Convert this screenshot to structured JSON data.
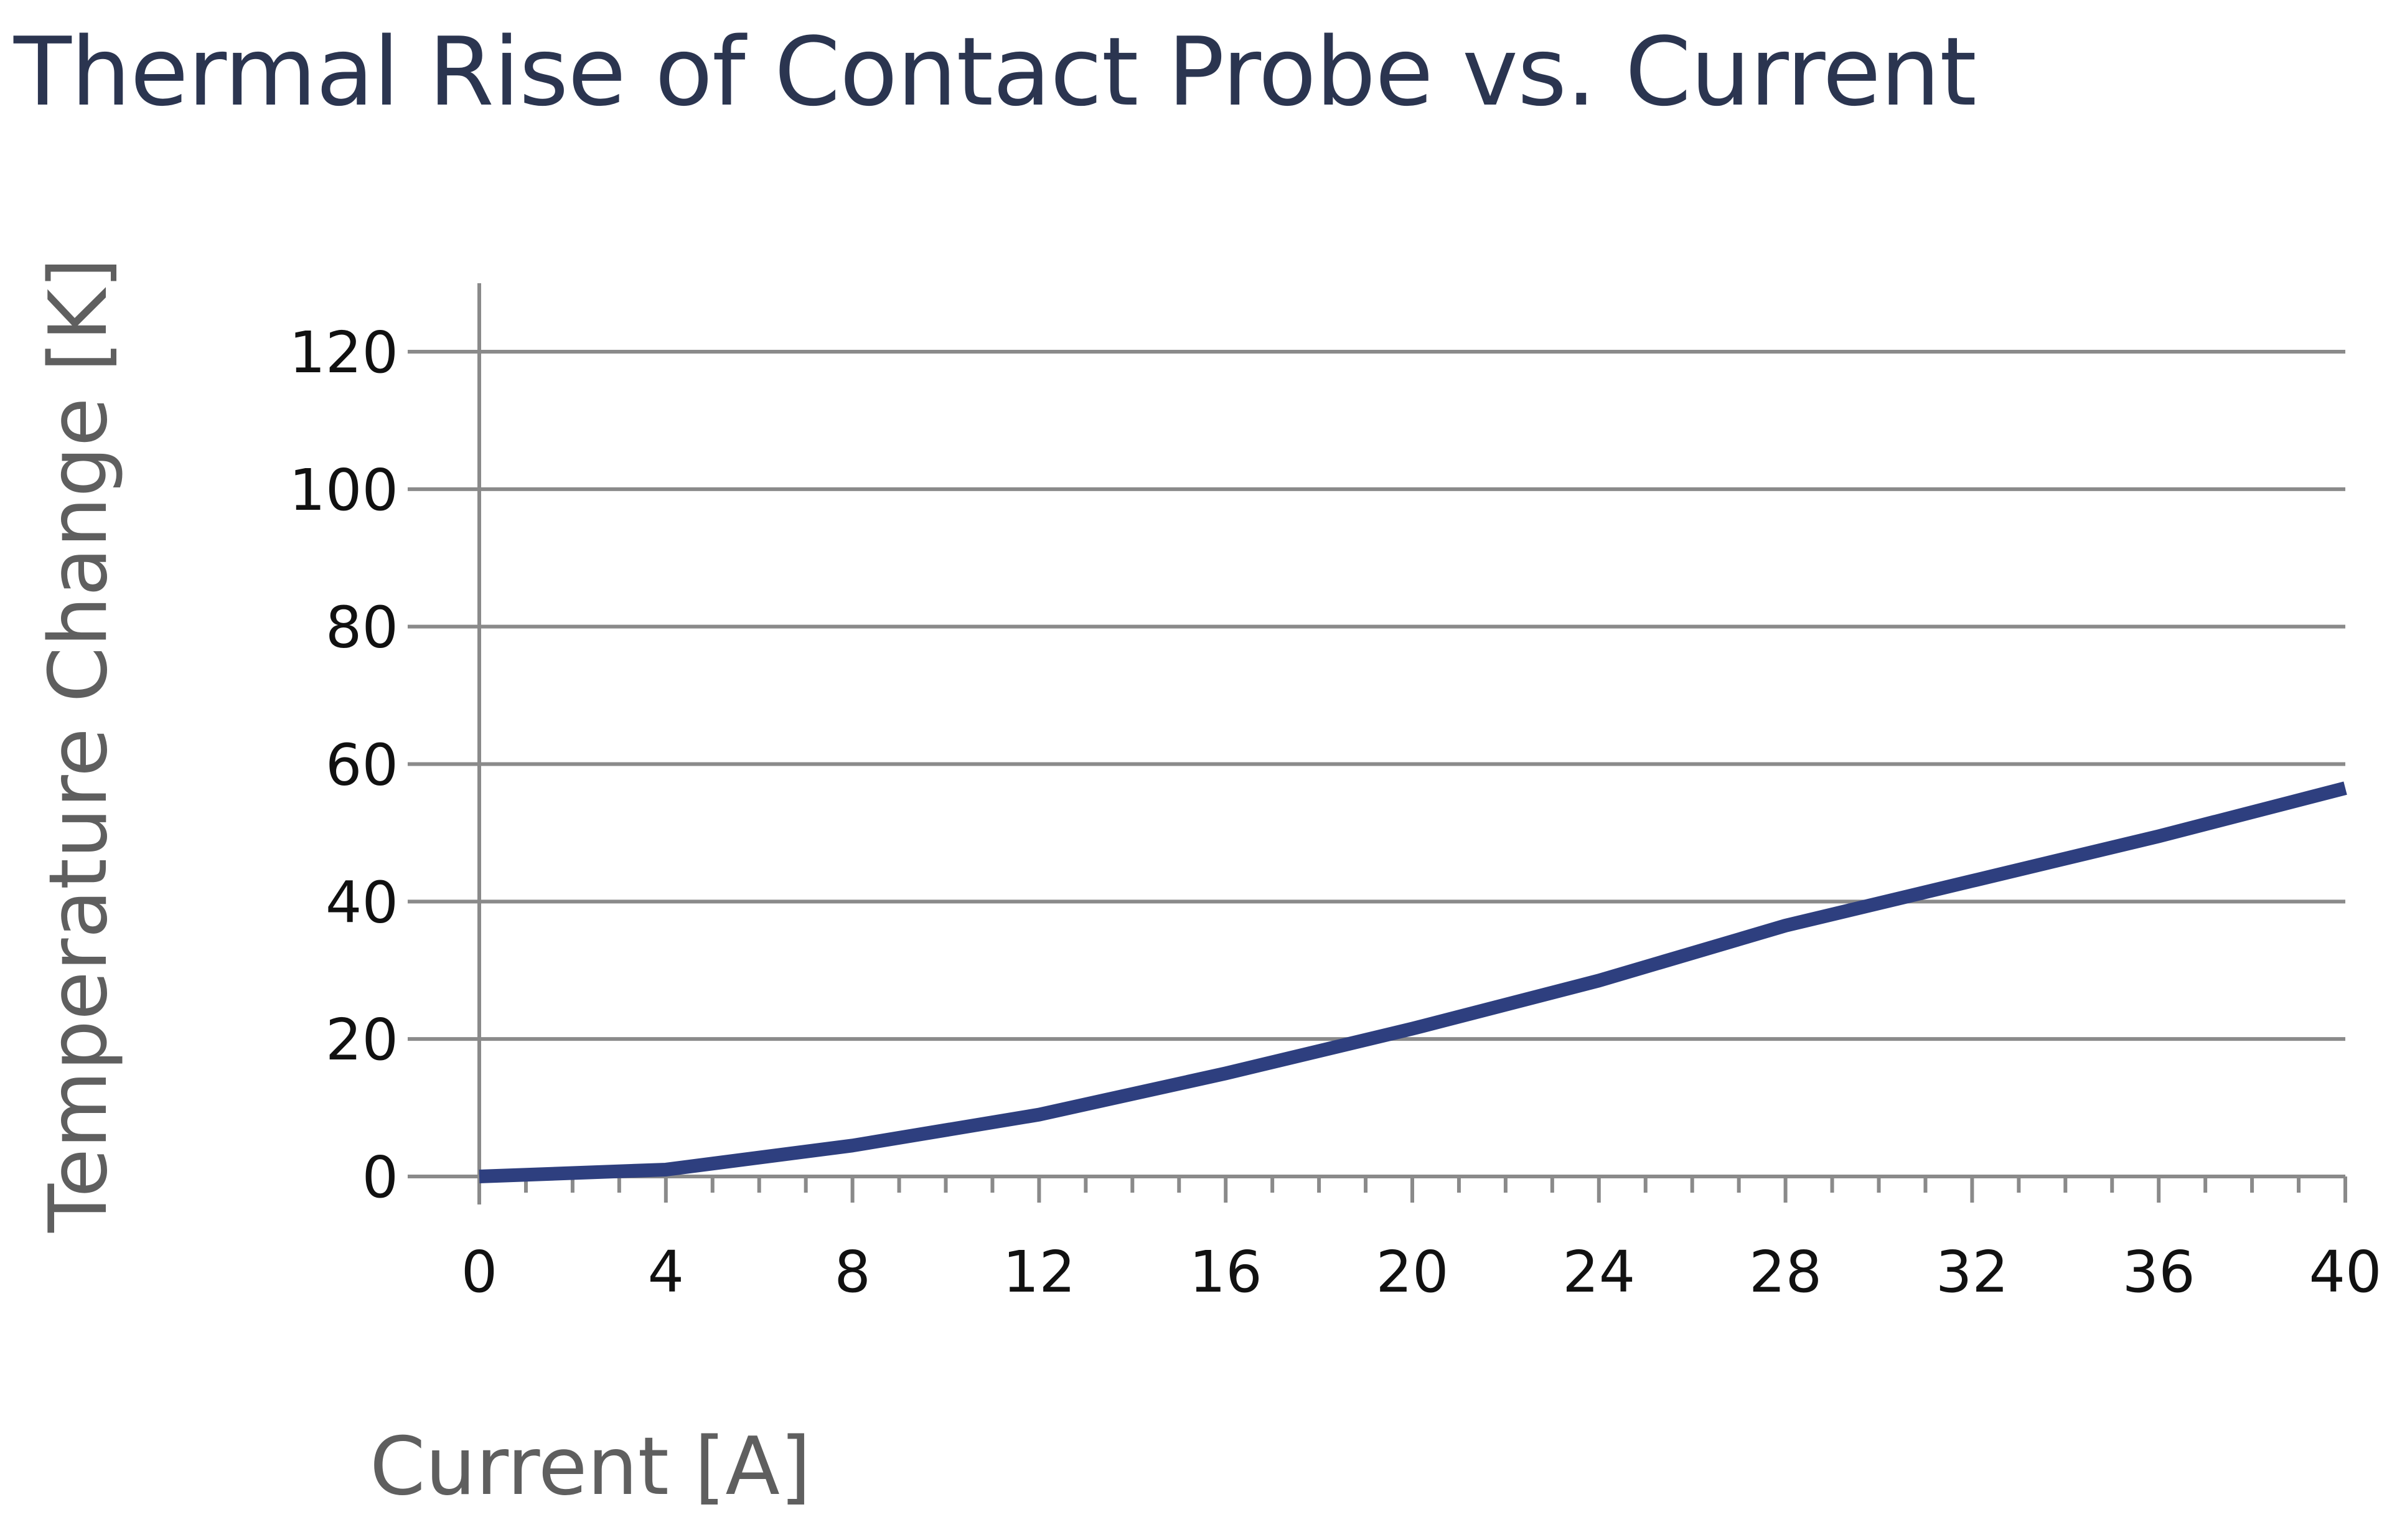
{
  "chart_data": {
    "type": "line",
    "title": "Thermal Rise of Contact Probe vs. Current",
    "xlabel": "Current [A]",
    "ylabel": "Temperature Change [K]",
    "xlim": [
      0,
      40
    ],
    "ylim": [
      0,
      120
    ],
    "x_ticks": [
      "0",
      "4",
      "8",
      "12",
      "16",
      "20",
      "24",
      "28",
      "32",
      "36",
      "40"
    ],
    "y_ticks": [
      "0",
      "20",
      "40",
      "60",
      "80",
      "100",
      "120"
    ],
    "grid": true,
    "legend": "none",
    "series": [
      {
        "color": "#2e3f7f",
        "x": [
          0,
          4,
          8,
          12,
          16,
          20,
          24,
          28,
          32,
          36,
          40
        ],
        "values": [
          0,
          1,
          4.5,
          9,
          15,
          21.5,
          28.5,
          36.5,
          43,
          49.5,
          56.5
        ]
      }
    ]
  }
}
